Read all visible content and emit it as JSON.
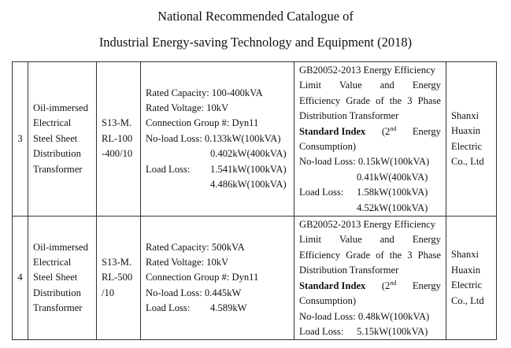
{
  "title": {
    "line1": "National Recommended Catalogue of",
    "line2": "Industrial Energy-saving Technology and Equipment (2018)"
  },
  "rows": [
    {
      "no": "3",
      "name": [
        "Oil-immersed",
        "Electrical",
        "Steel Sheet",
        "Distribution",
        "Transformer"
      ],
      "model": [
        "S13-M.",
        "RL-100",
        "-400/10"
      ],
      "specs": {
        "capacity": "Rated Capacity: 100-400kVA",
        "voltage": "Rated Voltage: 10kV",
        "group": "Connection Group #: Dyn11",
        "noload_label": "No-load Loss:",
        "noload": [
          "0.133kW(100kVA)",
          "0.402kW(400kVA)"
        ],
        "load_label": "Load Loss:",
        "load": [
          "1.541kW(100kVA)",
          "4.486kW(100kVA)"
        ]
      },
      "standard": {
        "lines": [
          "GB20052-2013 Energy Efficiency",
          "Limit Value and Energy",
          "Efficiency Grade of the 3 Phase",
          "Distribution Transformer"
        ],
        "index_label": "Standard Index",
        "index_rest_pre": "(2",
        "index_sup": "nd",
        "index_rest_post": "Energy",
        "consumption": "Consumption)",
        "noload_label": "No-load Loss:",
        "noload": [
          "0.15kW(100kVA)",
          "0.41kW(400kVA)"
        ],
        "load_label": "Load Loss:",
        "load": [
          "1.58kW(100kVA)",
          "4.52kW(100kVA)"
        ]
      },
      "company": [
        "Shanxi",
        "Huaxin",
        "Electric",
        "Co., Ltd"
      ]
    },
    {
      "no": "4",
      "name": [
        "Oil-immersed",
        "Electrical",
        "Steel Sheet",
        "Distribution",
        "Transformer"
      ],
      "model": [
        "S13-M.",
        "RL-500",
        "/10"
      ],
      "specs": {
        "capacity": "Rated Capacity: 500kVA",
        "voltage": "Rated Voltage: 10kV",
        "group": "Connection Group #: Dyn11",
        "noload_label": "No-load Loss:",
        "noload": [
          "0.445kW"
        ],
        "load_label": "Load Loss:",
        "load": [
          "4.589kW"
        ]
      },
      "standard": {
        "lines": [
          "GB20052-2013 Energy Efficiency",
          "Limit Value and Energy",
          "Efficiency Grade of the 3 Phase",
          "Distribution Transformer"
        ],
        "index_label": "Standard Index",
        "index_rest_pre": "(2",
        "index_sup": "nd",
        "index_rest_post": "Energy",
        "consumption": "Consumption)",
        "noload_label": "No-load Loss:",
        "noload": [
          "0.48kW(100kVA)"
        ],
        "load_label": "Load Loss:",
        "load": [
          "5.15kW(100kVA)"
        ]
      },
      "company": [
        "Shanxi",
        "Huaxin",
        "Electric",
        "Co., Ltd"
      ]
    }
  ]
}
